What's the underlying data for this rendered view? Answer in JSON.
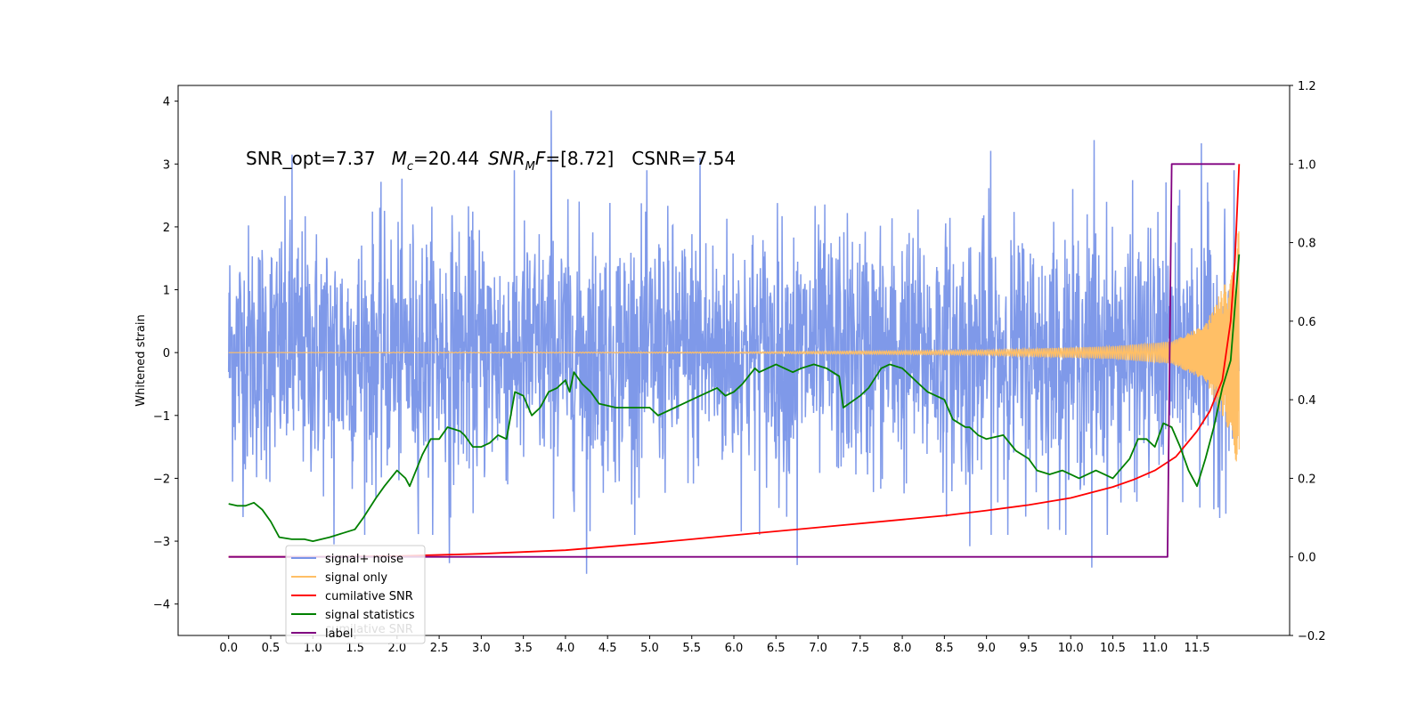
{
  "chart_data": {
    "type": "line",
    "title": "SNR_opt=7.37   $M_c$=20.44  $SNR_MF$=[8.72]    CSNR=7.54",
    "annotation": {
      "snr_opt": "SNR_opt=7.37",
      "mc_symbol": "M",
      "mc_sub": "c",
      "mc_value": "=20.44",
      "snrmf_symbol": "SNR",
      "snrmf_sub": "M",
      "snrmf_tail": "F",
      "snrmf_value": "=[8.72]",
      "csnr": "CSNR=7.54"
    },
    "xlabel": "",
    "ylabel": "Whitened strain",
    "xlim": [
      -0.6,
      12.6
    ],
    "ylim": [
      -4.5,
      4.25
    ],
    "y2lim": [
      -0.2,
      1.2
    ],
    "grid": false,
    "xticks": [
      "0.0",
      "0.5",
      "1.0",
      "1.5",
      "2.0",
      "2.5",
      "3.0",
      "3.5",
      "4.0",
      "4.5",
      "5.0",
      "5.5",
      "6.0",
      "6.5",
      "7.0",
      "7.5",
      "8.0",
      "8.5",
      "9.0",
      "9.5",
      "10.0",
      "10.5",
      "11.0",
      "11.5"
    ],
    "yticks": [
      "4",
      "3",
      "2",
      "1",
      "0",
      "−1",
      "−2",
      "−3",
      "−4"
    ],
    "y2ticks": [
      "1.2",
      "1.0",
      "0.8",
      "0.6",
      "0.4",
      "0.2",
      "0.0",
      "−0.2"
    ],
    "legend_position": "lower-left",
    "legend": [
      {
        "label": "signal+ noise",
        "color": "#7893e8"
      },
      {
        "label": "signal only",
        "color": "#ffbf66"
      },
      {
        "label": "cumilative SNR",
        "color": "#ff0000"
      },
      {
        "label": "signal statistics",
        "color": "#008000"
      },
      {
        "label": "label",
        "color": "#800080"
      }
    ],
    "legend_shadow_text": "cumilative SNR",
    "series": [
      {
        "name": "signal+ noise",
        "axis": "left",
        "color": "#7893e8",
        "x_range": [
          0.0,
          12.0
        ],
        "noise_amplitude": 1.05,
        "peaks": [
          {
            "x": 3.83,
            "y": 3.85
          },
          {
            "x": 10.28,
            "y": 3.38
          },
          {
            "x": 11.55,
            "y": 3.33
          },
          {
            "x": 9.05,
            "y": 3.21
          },
          {
            "x": 0.75,
            "y": 3.15
          },
          {
            "x": 5.6,
            "y": 3.1
          },
          {
            "x": 4.25,
            "y": -3.52
          },
          {
            "x": 10.25,
            "y": -3.42
          },
          {
            "x": 6.75,
            "y": -3.38
          },
          {
            "x": 2.62,
            "y": -3.35
          },
          {
            "x": 1.25,
            "y": -3.05
          },
          {
            "x": 8.8,
            "y": -3.08
          }
        ]
      },
      {
        "name": "signal only",
        "axis": "left",
        "color": "#ffbf66",
        "x_range": [
          0.0,
          12.0
        ],
        "envelope": [
          [
            0.0,
            0.0
          ],
          [
            6.0,
            0.01
          ],
          [
            9.0,
            0.04
          ],
          [
            10.5,
            0.1
          ],
          [
            11.2,
            0.18
          ],
          [
            11.6,
            0.45
          ],
          [
            11.9,
            1.3
          ],
          [
            12.0,
            2.0
          ]
        ]
      },
      {
        "name": "cumilative SNR",
        "axis": "right",
        "color": "#ff0000",
        "x": [
          0.0,
          1.0,
          2.0,
          3.0,
          4.0,
          5.0,
          6.0,
          7.0,
          8.0,
          8.5,
          9.0,
          9.5,
          10.0,
          10.5,
          10.75,
          11.0,
          11.25,
          11.5,
          11.65,
          11.8,
          11.9,
          11.95,
          12.0
        ],
        "y": [
          0.0,
          0.0,
          0.002,
          0.008,
          0.017,
          0.035,
          0.055,
          0.075,
          0.095,
          0.105,
          0.118,
          0.132,
          0.15,
          0.178,
          0.197,
          0.22,
          0.255,
          0.32,
          0.37,
          0.45,
          0.6,
          0.75,
          1.0
        ]
      },
      {
        "name": "signal statistics",
        "axis": "right",
        "color": "#008000",
        "x": [
          0.0,
          0.1,
          0.2,
          0.3,
          0.4,
          0.5,
          0.6,
          0.75,
          0.9,
          1.0,
          1.2,
          1.35,
          1.5,
          1.6,
          1.75,
          1.85,
          2.0,
          2.1,
          2.15,
          2.3,
          2.4,
          2.5,
          2.6,
          2.75,
          2.8,
          2.9,
          3.0,
          3.1,
          3.2,
          3.3,
          3.4,
          3.5,
          3.6,
          3.7,
          3.8,
          3.9,
          4.0,
          4.05,
          4.1,
          4.2,
          4.3,
          4.4,
          4.6,
          4.8,
          5.0,
          5.1,
          5.3,
          5.5,
          5.7,
          5.8,
          5.9,
          6.0,
          6.1,
          6.25,
          6.3,
          6.5,
          6.7,
          6.8,
          6.95,
          7.1,
          7.25,
          7.3,
          7.5,
          7.6,
          7.75,
          7.85,
          8.0,
          8.2,
          8.3,
          8.5,
          8.6,
          8.75,
          8.8,
          8.9,
          9.0,
          9.2,
          9.35,
          9.5,
          9.6,
          9.75,
          9.9,
          10.1,
          10.3,
          10.5,
          10.7,
          10.8,
          10.9,
          11.0,
          11.1,
          11.2,
          11.3,
          11.4,
          11.5,
          11.6,
          11.7,
          11.8,
          11.9,
          12.0
        ],
        "y": [
          0.135,
          0.13,
          0.13,
          0.138,
          0.12,
          0.09,
          0.05,
          0.045,
          0.045,
          0.04,
          0.05,
          0.06,
          0.07,
          0.1,
          0.15,
          0.18,
          0.22,
          0.2,
          0.18,
          0.26,
          0.3,
          0.3,
          0.33,
          0.32,
          0.31,
          0.28,
          0.28,
          0.29,
          0.31,
          0.3,
          0.42,
          0.41,
          0.36,
          0.38,
          0.42,
          0.43,
          0.45,
          0.42,
          0.47,
          0.44,
          0.42,
          0.39,
          0.38,
          0.38,
          0.38,
          0.36,
          0.38,
          0.4,
          0.42,
          0.43,
          0.41,
          0.42,
          0.44,
          0.48,
          0.47,
          0.49,
          0.47,
          0.48,
          0.49,
          0.48,
          0.46,
          0.38,
          0.41,
          0.43,
          0.48,
          0.49,
          0.48,
          0.44,
          0.42,
          0.4,
          0.35,
          0.33,
          0.33,
          0.31,
          0.3,
          0.31,
          0.27,
          0.25,
          0.22,
          0.21,
          0.22,
          0.2,
          0.22,
          0.2,
          0.25,
          0.3,
          0.3,
          0.28,
          0.34,
          0.33,
          0.28,
          0.22,
          0.18,
          0.25,
          0.33,
          0.43,
          0.5,
          0.77
        ]
      },
      {
        "name": "label",
        "axis": "right",
        "color": "#800080",
        "x": [
          0.0,
          11.15,
          11.2,
          11.95
        ],
        "y": [
          0.0,
          0.0,
          1.0,
          1.0
        ]
      }
    ]
  }
}
